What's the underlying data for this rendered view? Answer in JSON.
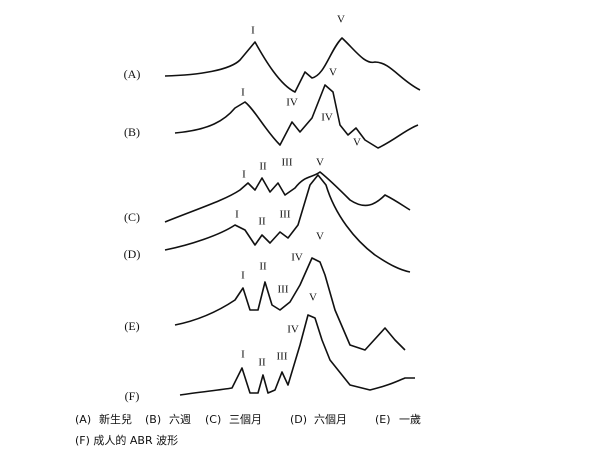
{
  "rows": [
    {
      "label": "(A)",
      "peaks": [
        "I",
        "V"
      ]
    },
    {
      "label": "(B)",
      "peaks": [
        "I",
        "IV",
        "V",
        "IV",
        "V"
      ]
    },
    {
      "label": "(C)",
      "peaks": [
        "I",
        "II",
        "III",
        "V"
      ]
    },
    {
      "label": "(D)",
      "peaks": [
        "I",
        "II",
        "III"
      ]
    },
    {
      "label": "(E)",
      "peaks": [
        "I",
        "II",
        "III",
        "IV",
        "V"
      ]
    },
    {
      "label": "(F)",
      "peaks": [
        "I",
        "II",
        "III",
        "IV",
        "V"
      ]
    }
  ],
  "caption": {
    "items": [
      {
        "key": "(A)",
        "text": "新生兒"
      },
      {
        "key": "(B)",
        "text": "六週"
      },
      {
        "key": "(C)",
        "text": "三個月"
      },
      {
        "key": "(D)",
        "text": "六個月"
      },
      {
        "key": "(E)",
        "text": "一歲"
      }
    ],
    "line2": "(F) 成人的 ABR 波形"
  }
}
